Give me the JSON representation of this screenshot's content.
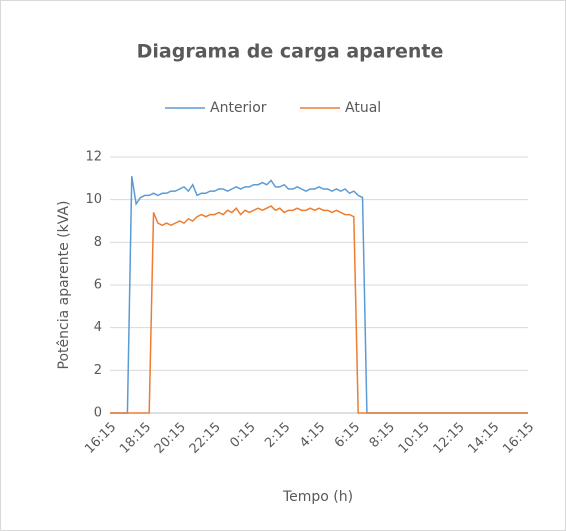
{
  "chart_data": {
    "type": "line",
    "title": "Diagrama de carga aparente",
    "x_label": "Tempo (h)",
    "y_label": "Potência aparente (kVA)",
    "legend": "top",
    "grid": true,
    "ylim": [
      0,
      12
    ],
    "yticks": [
      0,
      2,
      4,
      6,
      8,
      10,
      12
    ],
    "categories": [
      "16:15",
      null,
      null,
      null,
      null,
      null,
      null,
      null,
      "18:15",
      null,
      null,
      null,
      null,
      null,
      null,
      null,
      "20:15",
      null,
      null,
      null,
      null,
      null,
      null,
      null,
      "22:15",
      null,
      null,
      null,
      null,
      null,
      null,
      null,
      "0:15",
      null,
      null,
      null,
      null,
      null,
      null,
      null,
      "2:15",
      null,
      null,
      null,
      null,
      null,
      null,
      null,
      "4:15",
      null,
      null,
      null,
      null,
      null,
      null,
      null,
      "6:15",
      null,
      null,
      null,
      null,
      null,
      null,
      null,
      "8:15",
      null,
      null,
      null,
      null,
      null,
      null,
      null,
      "10:15",
      null,
      null,
      null,
      null,
      null,
      null,
      null,
      "12:15",
      null,
      null,
      null,
      null,
      null,
      null,
      null,
      "14:15",
      null,
      null,
      null,
      null,
      null,
      null,
      null,
      "16:15"
    ],
    "series": [
      {
        "name": "Anterior",
        "color": "#5b9bd5",
        "values": [
          0,
          0,
          0,
          0,
          0,
          11.1,
          9.8,
          10.1,
          10.2,
          10.2,
          10.3,
          10.2,
          10.3,
          10.3,
          10.4,
          10.4,
          10.5,
          10.6,
          10.4,
          10.7,
          10.2,
          10.3,
          10.3,
          10.4,
          10.4,
          10.5,
          10.5,
          10.4,
          10.5,
          10.6,
          10.5,
          10.6,
          10.6,
          10.7,
          10.7,
          10.8,
          10.7,
          10.9,
          10.6,
          10.6,
          10.7,
          10.5,
          10.5,
          10.6,
          10.5,
          10.4,
          10.5,
          10.5,
          10.6,
          10.5,
          10.5,
          10.4,
          10.5,
          10.4,
          10.5,
          10.3,
          10.4,
          10.2,
          10.1,
          0,
          0,
          0,
          0,
          0,
          0,
          0,
          0,
          0,
          0,
          0,
          0,
          0,
          0,
          0,
          0,
          0,
          0,
          0,
          0,
          0,
          0,
          0,
          0,
          0,
          0,
          0,
          0,
          0,
          0,
          0,
          0,
          0,
          0,
          0,
          0,
          0,
          0
        ]
      },
      {
        "name": "Atual",
        "color": "#ed7d31",
        "values": [
          0,
          0,
          0,
          0,
          0,
          0,
          0,
          0,
          0,
          0,
          9.4,
          8.9,
          8.8,
          8.9,
          8.8,
          8.9,
          9.0,
          8.9,
          9.1,
          9.0,
          9.2,
          9.3,
          9.2,
          9.3,
          9.3,
          9.4,
          9.3,
          9.5,
          9.4,
          9.6,
          9.3,
          9.5,
          9.4,
          9.5,
          9.6,
          9.5,
          9.6,
          9.7,
          9.5,
          9.6,
          9.4,
          9.5,
          9.5,
          9.6,
          9.5,
          9.5,
          9.6,
          9.5,
          9.6,
          9.5,
          9.5,
          9.4,
          9.5,
          9.4,
          9.3,
          9.3,
          9.2,
          0,
          0,
          0,
          0,
          0,
          0,
          0,
          0,
          0,
          0,
          0,
          0,
          0,
          0,
          0,
          0,
          0,
          0,
          0,
          0,
          0,
          0,
          0,
          0,
          0,
          0,
          0,
          0,
          0,
          0,
          0,
          0,
          0,
          0,
          0,
          0,
          0,
          0,
          0,
          0
        ]
      }
    ]
  }
}
